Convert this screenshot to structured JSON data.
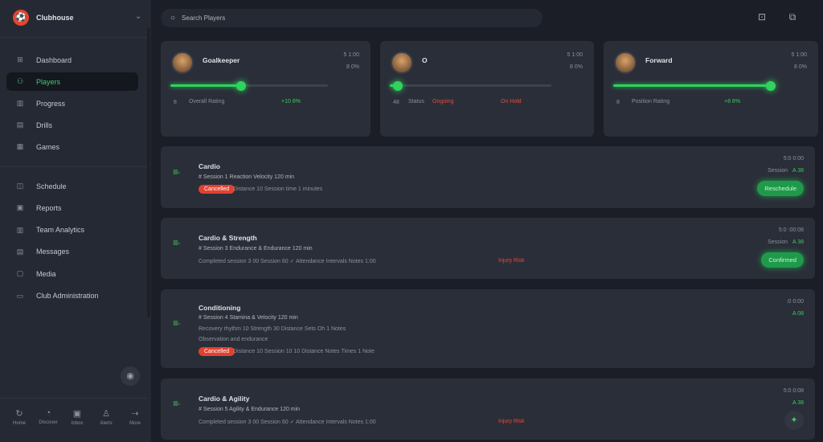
{
  "sidebar": {
    "title": "Clubhouse",
    "nav_primary": [
      {
        "label": "Dashboard",
        "icon": "grid-icon"
      },
      {
        "label": "Players",
        "icon": "users-icon",
        "active": true
      },
      {
        "label": "Progress",
        "icon": "chart-icon"
      },
      {
        "label": "Drills",
        "icon": "list-icon"
      },
      {
        "label": "Games",
        "icon": "calendar-icon"
      }
    ],
    "nav_secondary": [
      {
        "label": "Schedule",
        "icon": "clock-icon"
      },
      {
        "label": "Reports",
        "icon": "file-icon"
      },
      {
        "label": "Team Analytics",
        "icon": "bar-icon"
      },
      {
        "label": "Messages",
        "icon": "mail-icon"
      },
      {
        "label": "Media",
        "icon": "image-icon"
      },
      {
        "label": "Club Administration",
        "icon": "settings-icon"
      }
    ],
    "bottom": [
      {
        "label": "Home",
        "icon": "refresh-icon"
      },
      {
        "label": "Discover",
        "icon": "compass-icon"
      },
      {
        "label": "Inbox",
        "icon": "inbox-icon"
      },
      {
        "label": "Alerts",
        "icon": "bell-icon"
      },
      {
        "label": "More",
        "icon": "more-icon"
      }
    ]
  },
  "header": {
    "search_placeholder": "Search Players"
  },
  "players": [
    {
      "name": "Goalkeeper",
      "stat1": "5 1:00",
      "stat2": "8 0%",
      "label": "Overall Rating",
      "value": "+10 8%",
      "icon": "8",
      "progress": 0.45,
      "value_color": "green"
    },
    {
      "name": "O",
      "stat1": "5 1:00",
      "stat2": "8 0%",
      "label": "Status",
      "value": "Ongoing",
      "value2": "On Hold",
      "icon": "48",
      "progress": 0.05,
      "value_color": "red"
    },
    {
      "name": "Forward",
      "stat1": "5 1:00",
      "stat2": "8 0%",
      "label": "Position Rating",
      "value": "+8 8%",
      "icon": "8",
      "progress": 0.97,
      "value_color": "green"
    }
  ],
  "sessions": [
    {
      "title": "Cardio",
      "desc": "# Session 1 Reaction Velocity 120 min",
      "badge": "Cancelled",
      "meta": "Distance 10  Session time 1 minutes",
      "time": "5:0 0:00",
      "score_label": "Session",
      "score": "A 38",
      "button": "Reschedule"
    },
    {
      "title": "Cardio & Strength",
      "desc": "# Session 3 Endurance & Endurance 120 min",
      "meta": "Completed session 3 00 Session 60  ✓  Attendance  Intervals  Notes  1:00",
      "meta_red": "Injury Risk",
      "time": "5:0 :00:08",
      "score_label": "Session",
      "score": "A 38",
      "button": "Confirmed"
    },
    {
      "title": "Conditioning",
      "desc": "# Session 4 Stamina & Velocity 120 min",
      "line2": "Recovery rhythm 10 Strength 30  Distance  Sets  Oh  1 Notes",
      "line3": "Observation and endurance",
      "badge": "Cancelled",
      "meta": "Distance 10 Session 10 10 Distance  Notes  Times  1 Note",
      "time": ":0 0:00",
      "score": "A 08"
    },
    {
      "title": "Cardio & Agility",
      "desc": "# Session 5 Agility & Endurance 120 min",
      "meta": "Completed session 3 00 Session 60  ✓  Attendance  Intervals  Notes  1:00",
      "meta_red": "Injury Risk",
      "time": "5:0 0:08",
      "score": "A 38"
    }
  ]
}
